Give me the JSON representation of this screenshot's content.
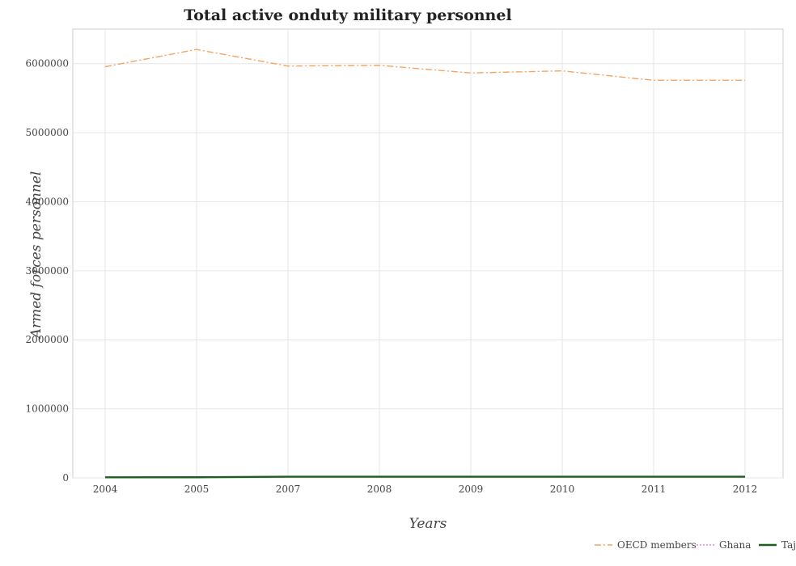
{
  "chart_data": {
    "type": "line",
    "title": "Total active onduty military personnel",
    "xlabel": "Years",
    "ylabel": "Armed forces personnel",
    "categories": [
      "2004",
      "2005",
      "2007",
      "2008",
      "2009",
      "2010",
      "2011",
      "2012"
    ],
    "ylim": [
      0,
      6500000
    ],
    "yticks": [
      0,
      1000000,
      2000000,
      3000000,
      4000000,
      5000000,
      6000000
    ],
    "ytick_labels": [
      "0",
      "1000000",
      "2000000",
      "3000000",
      "4000000",
      "5000000",
      "6000000"
    ],
    "grid": true,
    "legend_position": "bottom-right",
    "series": [
      {
        "name": "OECD members",
        "color": "#f4a460",
        "style": "dash-dot",
        "values": [
          5955000,
          6205000,
          5965000,
          5975000,
          5865000,
          5895000,
          5758000,
          5758000
        ]
      },
      {
        "name": "Ghana",
        "color": "#ee82ee",
        "style": "dotted",
        "values": [
          7000,
          7000,
          13500,
          13500,
          13500,
          15500,
          15500,
          15500
        ]
      },
      {
        "name": "Tajikistan",
        "color": "#1c5f1c",
        "style": "solid",
        "values": [
          7600,
          8800,
          16300,
          16300,
          16300,
          16300,
          16300,
          16300
        ]
      }
    ]
  }
}
